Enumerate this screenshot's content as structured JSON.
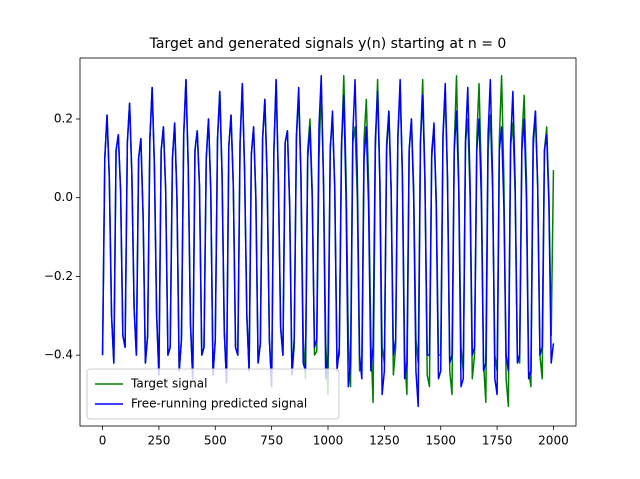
{
  "chart_data": {
    "type": "line",
    "title": "Target and generated signals y(n) starting at n = 0",
    "x": [
      0,
      10,
      20,
      30,
      40,
      50,
      60,
      70,
      80,
      90,
      100,
      110,
      120,
      130,
      140,
      150,
      160,
      170,
      180,
      190,
      200,
      210,
      220,
      230,
      240,
      250,
      260,
      270,
      280,
      290,
      300,
      310,
      320,
      330,
      340,
      350,
      360,
      370,
      380,
      390,
      400,
      410,
      420,
      430,
      440,
      450,
      460,
      470,
      480,
      490,
      500,
      510,
      520,
      530,
      540,
      550,
      560,
      570,
      580,
      590,
      600,
      610,
      620,
      630,
      640,
      650,
      660,
      670,
      680,
      690,
      700,
      710,
      720,
      730,
      740,
      750,
      760,
      770,
      780,
      790,
      800,
      810,
      820,
      830,
      840,
      850,
      860,
      870,
      880,
      890,
      900,
      910,
      920,
      930,
      940,
      950,
      960,
      970,
      980,
      990,
      1000,
      1010,
      1020,
      1030,
      1040,
      1050,
      1060,
      1070,
      1080,
      1090,
      1100,
      1110,
      1120,
      1130,
      1140,
      1150,
      1160,
      1170,
      1180,
      1190,
      1200,
      1210,
      1220,
      1230,
      1240,
      1250,
      1260,
      1270,
      1280,
      1290,
      1300,
      1310,
      1320,
      1330,
      1340,
      1350,
      1360,
      1370,
      1380,
      1390,
      1400,
      1410,
      1420,
      1430,
      1440,
      1450,
      1460,
      1470,
      1480,
      1490,
      1500,
      1510,
      1520,
      1530,
      1540,
      1550,
      1560,
      1570,
      1580,
      1590,
      1600,
      1610,
      1620,
      1630,
      1640,
      1650,
      1660,
      1670,
      1680,
      1690,
      1700,
      1710,
      1720,
      1730,
      1740,
      1750,
      1760,
      1770,
      1780,
      1790,
      1800,
      1810,
      1820,
      1830,
      1840,
      1850,
      1860,
      1870,
      1880,
      1890,
      1900,
      1910,
      1920,
      1930,
      1940,
      1950,
      1960,
      1970,
      1980,
      1990,
      2000
    ],
    "series": [
      {
        "name": "Target signal",
        "color": "#008000",
        "values": [
          -0.4,
          0.1,
          0.21,
          0.05,
          -0.3,
          -0.42,
          0.12,
          0.16,
          0.02,
          -0.35,
          -0.38,
          0.14,
          0.24,
          0.06,
          -0.28,
          -0.4,
          0.1,
          0.15,
          -0.05,
          -0.42,
          -0.35,
          0.15,
          0.28,
          0.08,
          -0.3,
          -0.45,
          0.12,
          0.18,
          0.02,
          -0.4,
          -0.38,
          0.1,
          0.19,
          0.0,
          -0.44,
          -0.36,
          0.16,
          0.3,
          0.08,
          -0.32,
          -0.46,
          0.12,
          0.17,
          0.03,
          -0.4,
          -0.38,
          0.1,
          0.2,
          0.02,
          -0.45,
          -0.36,
          0.15,
          0.27,
          0.06,
          -0.34,
          -0.47,
          0.13,
          0.21,
          0.03,
          -0.38,
          -0.4,
          0.14,
          0.29,
          0.07,
          -0.3,
          -0.44,
          0.11,
          0.18,
          0.0,
          -0.42,
          -0.37,
          0.15,
          0.25,
          0.05,
          -0.36,
          -0.48,
          0.12,
          0.3,
          0.04,
          -0.33,
          -0.4,
          0.14,
          0.17,
          -0.02,
          -0.45,
          -0.38,
          0.15,
          0.26,
          0.06,
          -0.35,
          -0.46,
          0.12,
          0.2,
          0.02,
          -0.4,
          -0.39,
          0.1,
          0.28,
          0.05,
          -0.37,
          -0.5,
          0.13,
          0.2,
          0.03,
          -0.42,
          -0.4,
          0.12,
          0.31,
          0.06,
          -0.35,
          -0.48,
          0.14,
          0.18,
          0.0,
          -0.44,
          -0.42,
          0.15,
          0.25,
          0.04,
          -0.36,
          -0.52,
          0.12,
          0.3,
          0.05,
          -0.38,
          -0.42,
          0.14,
          0.22,
          0.02,
          -0.45,
          -0.38,
          0.15,
          0.28,
          0.06,
          -0.4,
          -0.5,
          0.12,
          0.2,
          0.03,
          -0.36,
          -0.42,
          0.14,
          0.3,
          0.05,
          -0.45,
          -0.48,
          0.12,
          0.18,
          0.0,
          -0.4,
          -0.4,
          0.15,
          0.27,
          0.05,
          -0.44,
          -0.5,
          0.13,
          0.31,
          0.04,
          -0.38,
          -0.44,
          0.14,
          0.2,
          0.01,
          -0.46,
          -0.4,
          0.15,
          0.29,
          0.06,
          -0.42,
          -0.52,
          0.12,
          0.21,
          0.02,
          -0.4,
          -0.44,
          0.15,
          0.31,
          0.05,
          -0.46,
          -0.53,
          0.13,
          0.19,
          0.01,
          -0.4,
          -0.42,
          0.15,
          0.26,
          0.05,
          -0.44,
          -0.48,
          0.12,
          0.22,
          0.03,
          -0.4,
          -0.46,
          0.12,
          0.18,
          0.0,
          -0.35,
          0.07
        ]
      },
      {
        "name": "Free-running predicted signal",
        "color": "#0000ff",
        "values": [
          -0.4,
          0.1,
          0.21,
          0.05,
          -0.3,
          -0.42,
          0.12,
          0.16,
          0.02,
          -0.35,
          -0.38,
          0.14,
          0.24,
          0.06,
          -0.28,
          -0.4,
          0.1,
          0.15,
          -0.05,
          -0.42,
          -0.35,
          0.15,
          0.28,
          0.08,
          -0.3,
          -0.45,
          0.12,
          0.18,
          0.02,
          -0.4,
          -0.38,
          0.1,
          0.19,
          0.0,
          -0.44,
          -0.36,
          0.16,
          0.3,
          0.08,
          -0.32,
          -0.46,
          0.12,
          0.17,
          0.03,
          -0.4,
          -0.38,
          0.1,
          0.2,
          0.02,
          -0.45,
          -0.36,
          0.15,
          0.27,
          0.06,
          -0.34,
          -0.47,
          0.13,
          0.21,
          0.03,
          -0.38,
          -0.4,
          0.14,
          0.29,
          0.07,
          -0.3,
          -0.44,
          0.11,
          0.18,
          0.0,
          -0.42,
          -0.37,
          0.15,
          0.25,
          0.05,
          -0.36,
          -0.48,
          0.12,
          0.3,
          0.04,
          -0.33,
          -0.4,
          0.14,
          0.17,
          -0.02,
          -0.45,
          -0.36,
          0.16,
          0.28,
          0.05,
          -0.42,
          -0.44,
          0.1,
          0.18,
          0.0,
          -0.38,
          -0.36,
          0.18,
          0.31,
          0.04,
          -0.46,
          -0.4,
          0.12,
          0.22,
          0.02,
          -0.44,
          -0.38,
          0.14,
          0.26,
          0.0,
          -0.48,
          -0.42,
          0.16,
          0.3,
          0.06,
          -0.4,
          -0.46,
          0.1,
          0.18,
          -0.02,
          -0.44,
          -0.38,
          0.15,
          0.27,
          0.04,
          -0.5,
          -0.44,
          0.12,
          0.22,
          0.02,
          -0.4,
          -0.36,
          0.16,
          0.3,
          0.05,
          -0.46,
          -0.42,
          0.12,
          0.2,
          0.0,
          -0.44,
          -0.53,
          0.14,
          0.26,
          0.04,
          -0.4,
          -0.4,
          0.1,
          0.19,
          -0.02,
          -0.46,
          -0.44,
          0.16,
          0.29,
          0.05,
          -0.42,
          -0.4,
          0.12,
          0.22,
          0.02,
          -0.48,
          -0.46,
          0.15,
          0.28,
          0.04,
          -0.4,
          -0.38,
          0.12,
          0.2,
          0.0,
          -0.44,
          -0.42,
          0.16,
          0.3,
          0.05,
          -0.46,
          -0.5,
          0.12,
          0.18,
          -0.02,
          -0.4,
          -0.44,
          0.14,
          0.27,
          0.04,
          -0.42,
          -0.4,
          0.12,
          0.2,
          0.0,
          -0.46,
          -0.44,
          0.15,
          0.22,
          0.03,
          -0.4,
          -0.38,
          0.12,
          0.16,
          -0.02,
          -0.42,
          -0.37
        ]
      }
    ],
    "xlim": [
      -100,
      2100
    ],
    "ylim": [
      -0.58,
      0.355
    ],
    "xticks": [
      0,
      250,
      500,
      750,
      1000,
      1250,
      1500,
      1750,
      2000
    ],
    "yticks": [
      {
        "value": -0.4,
        "label": "−0.4"
      },
      {
        "value": -0.2,
        "label": "−0.2"
      },
      {
        "value": 0,
        "label": "0.0"
      },
      0.2
    ],
    "legend": "lower left"
  }
}
